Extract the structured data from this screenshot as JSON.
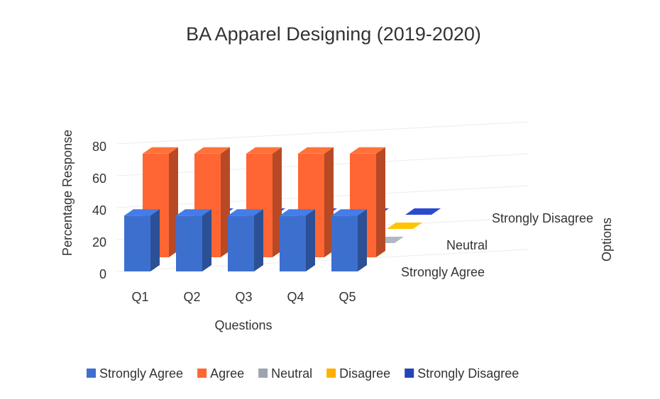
{
  "chart_data": {
    "type": "bar3d",
    "title": "BA Apparel Designing (2019-2020)",
    "x_label": "Questions",
    "y_label": "Percentage Response",
    "depth_label": "Options",
    "categories": [
      "Q1",
      "Q2",
      "Q3",
      "Q4",
      "Q5"
    ],
    "series": [
      {
        "name": "Strongly Agree",
        "color": "#3d6fcf",
        "values": [
          35,
          35,
          35,
          35,
          35
        ]
      },
      {
        "name": "Agree",
        "color": "#ff6633",
        "values": [
          65,
          65,
          65,
          65,
          65
        ]
      },
      {
        "name": "Neutral",
        "color": "#9ea3b0",
        "values": [
          0,
          0,
          0,
          0,
          0
        ]
      },
      {
        "name": "Disagree",
        "color": "#ffb000",
        "values": [
          0,
          0,
          0,
          0,
          0
        ]
      },
      {
        "name": "Strongly Disagree",
        "color": "#2643b8",
        "values": [
          0,
          0,
          0,
          0,
          0
        ]
      }
    ],
    "depth_labels": [
      "Strongly Agree",
      null,
      "Neutral",
      null,
      "Strongly Disagree"
    ],
    "ylim": [
      0,
      80
    ],
    "yticks": [
      0,
      20,
      40,
      60,
      80
    ],
    "grid": true,
    "legend": "bottom"
  }
}
